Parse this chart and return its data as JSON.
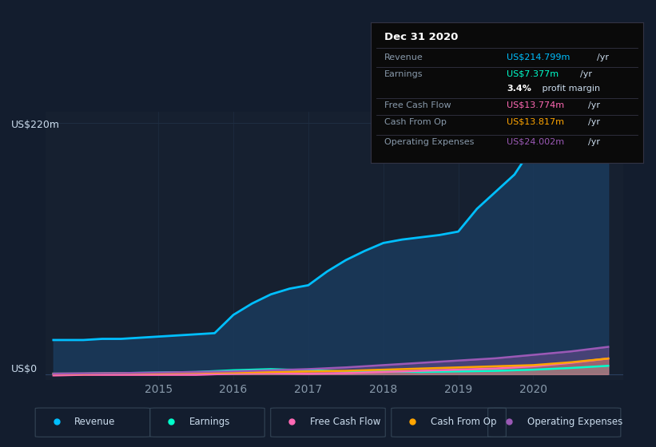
{
  "bg_color": "#131d2e",
  "plot_bg_color": "#162030",
  "grid_color": "#1e2d42",
  "title_label": "US$220m",
  "zero_label": "US$0",
  "x_ticks": [
    2015,
    2016,
    2017,
    2018,
    2019,
    2020
  ],
  "ylim": [
    -5,
    230
  ],
  "xlim_start": 2013.5,
  "xlim_end": 2021.2,
  "series": {
    "Revenue": {
      "color": "#00bfff",
      "fill_color": "#1a3a5c",
      "x": [
        2013.6,
        2014.0,
        2014.25,
        2014.5,
        2014.75,
        2015.0,
        2015.25,
        2015.5,
        2015.75,
        2016.0,
        2016.25,
        2016.5,
        2016.75,
        2017.0,
        2017.25,
        2017.5,
        2017.75,
        2018.0,
        2018.25,
        2018.5,
        2018.75,
        2019.0,
        2019.25,
        2019.5,
        2019.75,
        2020.0,
        2020.25,
        2020.5,
        2020.75,
        2021.0
      ],
      "y": [
        30,
        30,
        31,
        31,
        32,
        33,
        34,
        35,
        36,
        52,
        62,
        70,
        75,
        78,
        90,
        100,
        108,
        115,
        118,
        120,
        122,
        125,
        145,
        160,
        175,
        200,
        215,
        218,
        212,
        215
      ]
    },
    "Earnings": {
      "color": "#00ffcc",
      "x": [
        2013.6,
        2014.0,
        2014.5,
        2015.0,
        2015.5,
        2016.0,
        2016.25,
        2016.5,
        2016.75,
        2017.0,
        2017.5,
        2018.0,
        2018.5,
        2019.0,
        2019.5,
        2020.0,
        2020.5,
        2021.0
      ],
      "y": [
        0.5,
        0.5,
        1.0,
        1.5,
        2.0,
        3.5,
        4.0,
        4.5,
        4.0,
        3.5,
        2.5,
        2.5,
        2.0,
        2.5,
        3.0,
        4.0,
        5.5,
        7.4
      ]
    },
    "Free Cash Flow": {
      "color": "#ff69b4",
      "x": [
        2013.6,
        2014.0,
        2014.5,
        2015.0,
        2015.5,
        2016.0,
        2016.5,
        2017.0,
        2017.5,
        2018.0,
        2018.5,
        2019.0,
        2019.5,
        2020.0,
        2020.5,
        2021.0
      ],
      "y": [
        -1.0,
        -0.5,
        -0.5,
        -0.5,
        -0.5,
        0.5,
        1.0,
        0.5,
        1.0,
        2.0,
        3.0,
        4.0,
        5.0,
        7.0,
        10.0,
        13.8
      ]
    },
    "Cash From Op": {
      "color": "#ffa500",
      "x": [
        2013.6,
        2014.0,
        2014.5,
        2015.0,
        2015.5,
        2016.0,
        2016.5,
        2017.0,
        2017.5,
        2018.0,
        2018.5,
        2019.0,
        2019.5,
        2020.0,
        2020.5,
        2021.0
      ],
      "y": [
        0.5,
        0.5,
        1.0,
        1.0,
        1.5,
        1.5,
        2.0,
        2.5,
        3.0,
        4.0,
        5.0,
        6.0,
        7.0,
        8.0,
        10.5,
        13.8
      ]
    },
    "Operating Expenses": {
      "color": "#9b59b6",
      "x": [
        2013.6,
        2014.0,
        2014.5,
        2015.0,
        2015.5,
        2016.0,
        2016.5,
        2017.0,
        2017.5,
        2018.0,
        2018.5,
        2019.0,
        2019.5,
        2020.0,
        2020.5,
        2021.0
      ],
      "y": [
        0.5,
        0.8,
        1.0,
        1.5,
        2.0,
        2.5,
        3.5,
        4.5,
        6.0,
        8.0,
        10.0,
        12.0,
        14.0,
        17.0,
        20.0,
        24.0
      ]
    }
  },
  "info_box": {
    "title": "Dec 31 2020",
    "rows": [
      {
        "label": "Revenue",
        "value": "US$214.799m",
        "unit": "/yr",
        "value_color": "#00bfff"
      },
      {
        "label": "Earnings",
        "value": "US$7.377m",
        "unit": "/yr",
        "value_color": "#00ffcc"
      },
      {
        "label": "",
        "value": "3.4%",
        "unit": " profit margin",
        "value_color": "#ffffff",
        "bold": true
      },
      {
        "label": "Free Cash Flow",
        "value": "US$13.774m",
        "unit": "/yr",
        "value_color": "#ff69b4"
      },
      {
        "label": "Cash From Op",
        "value": "US$13.817m",
        "unit": "/yr",
        "value_color": "#ffa500"
      },
      {
        "label": "Operating Expenses",
        "value": "US$24.002m",
        "unit": "/yr",
        "value_color": "#9b59b6"
      }
    ]
  },
  "legend_items": [
    {
      "label": "Revenue",
      "color": "#00bfff"
    },
    {
      "label": "Earnings",
      "color": "#00ffcc"
    },
    {
      "label": "Free Cash Flow",
      "color": "#ff69b4"
    },
    {
      "label": "Cash From Op",
      "color": "#ffa500"
    },
    {
      "label": "Operating Expenses",
      "color": "#9b59b6"
    }
  ]
}
